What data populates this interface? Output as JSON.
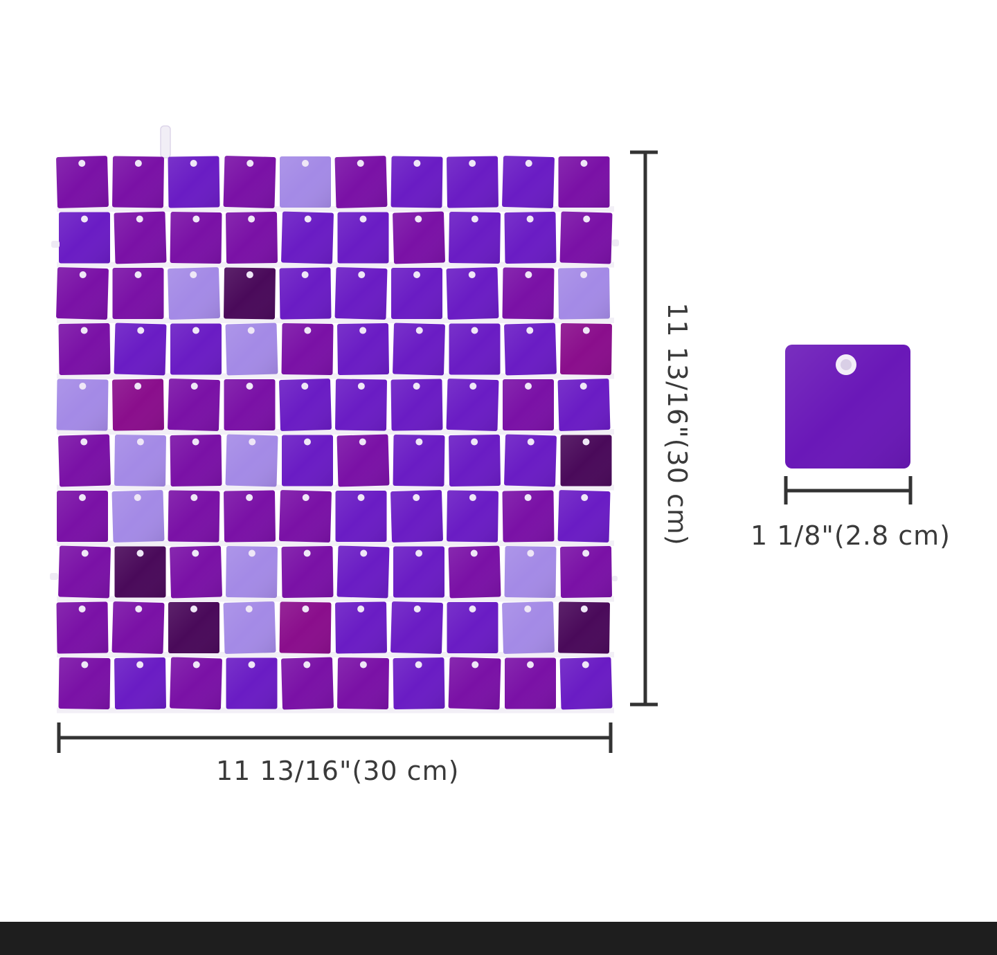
{
  "product": {
    "panel_width_label": "11 13/16\"(30 cm)",
    "panel_height_label": "11 13/16\"(30 cm)",
    "sequin_size_label": "1 1/8\"(2.8 cm)",
    "grid_rows": 10,
    "grid_columns": 10
  },
  "colors": {
    "sequin_deep_purple": "#7a11a6",
    "sequin_violet": "#6a1cc4",
    "sequin_magenta": "#8a0e8c",
    "sequin_lavender": "#a48ae6",
    "sequin_dark_plum": "#4a0a5a",
    "single_sequin": "#6a18b8",
    "dimension_line": "#333333",
    "bottom_bar": "#1e1e1e"
  }
}
